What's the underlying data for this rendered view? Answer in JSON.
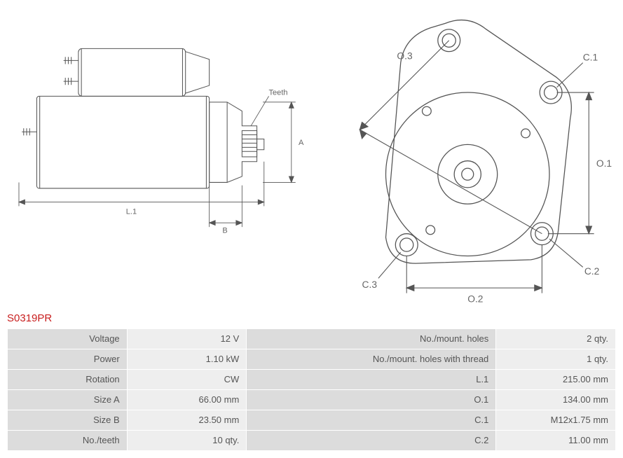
{
  "part_number": "S0319PR",
  "diagram": {
    "stroke_color": "#555555",
    "stroke_width": 1.2,
    "label_color": "#666666",
    "label_fontsize": 13,
    "left": {
      "labels": {
        "teeth": "Teeth",
        "A": "A",
        "B": "B",
        "L1": "L.1"
      }
    },
    "right": {
      "labels": {
        "O1": "O.1",
        "O2": "O.2",
        "O3": "O.3",
        "C1": "C.1",
        "C2": "C.2",
        "C3": "C.3"
      }
    }
  },
  "spec_table": {
    "header_bg": "#dcdcdc",
    "value_bg": "#eeeeee",
    "border_color": "#ffffff",
    "text_color": "#555555",
    "rows": [
      {
        "l1": "Voltage",
        "v1": "12 V",
        "l2": "No./mount. holes",
        "v2": "2 qty."
      },
      {
        "l1": "Power",
        "v1": "1.10 kW",
        "l2": "No./mount. holes with thread",
        "v2": "1 qty."
      },
      {
        "l1": "Rotation",
        "v1": "CW",
        "l2": "L.1",
        "v2": "215.00 mm"
      },
      {
        "l1": "Size A",
        "v1": "66.00 mm",
        "l2": "O.1",
        "v2": "134.00 mm"
      },
      {
        "l1": "Size B",
        "v1": "23.50 mm",
        "l2": "C.1",
        "v2": "M12x1.75 mm"
      },
      {
        "l1": "No./teeth",
        "v1": "10 qty.",
        "l2": "C.2",
        "v2": "11.00 mm"
      }
    ]
  }
}
